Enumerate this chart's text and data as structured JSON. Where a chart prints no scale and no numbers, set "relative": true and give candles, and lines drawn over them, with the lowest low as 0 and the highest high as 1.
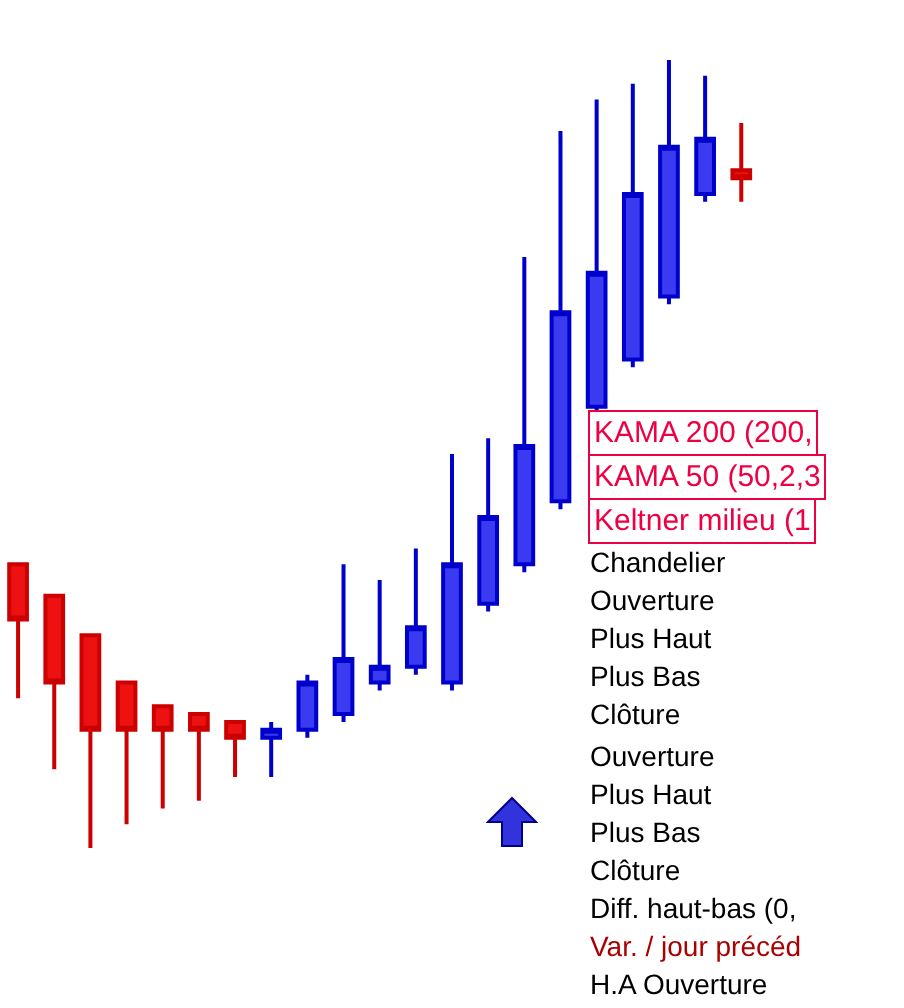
{
  "chart_data": {
    "type": "candlestick",
    "relative": true,
    "categories": [
      null,
      null,
      null,
      null,
      null,
      null,
      null,
      null,
      null,
      null,
      null,
      null,
      null,
      null,
      null,
      null,
      null,
      null,
      null,
      null,
      null
    ],
    "ohlc": [
      [
        0.36,
        0.36,
        0.19,
        0.29
      ],
      [
        0.32,
        0.32,
        0.1,
        0.21
      ],
      [
        0.27,
        0.27,
        0,
        0.15
      ],
      [
        0.21,
        0.21,
        0.03,
        0.15
      ],
      [
        0.18,
        0.18,
        0.05,
        0.15
      ],
      [
        0.17,
        0.17,
        0.06,
        0.15
      ],
      [
        0.16,
        0.16,
        0.09,
        0.14
      ],
      [
        0.14,
        0.16,
        0.09,
        0.15
      ],
      [
        0.15,
        0.22,
        0.14,
        0.21
      ],
      [
        0.17,
        0.36,
        0.16,
        0.24
      ],
      [
        0.21,
        0.34,
        0.2,
        0.23
      ],
      [
        0.23,
        0.38,
        0.22,
        0.28
      ],
      [
        0.21,
        0.5,
        0.2,
        0.36
      ],
      [
        0.31,
        0.52,
        0.3,
        0.42
      ],
      [
        0.36,
        0.75,
        0.35,
        0.51
      ],
      [
        0.44,
        0.91,
        0.43,
        0.68
      ],
      [
        0.56,
        0.95,
        0.55,
        0.73
      ],
      [
        0.62,
        0.97,
        0.61,
        0.83
      ],
      [
        0.7,
        1,
        0.69,
        0.89
      ],
      [
        0.83,
        0.98,
        0.82,
        0.9
      ],
      [
        0.86,
        0.92,
        0.82,
        0.85
      ]
    ],
    "annotations": [
      "KAMA 200 (200,",
      "KAMA 50 (50,2,3",
      "Keltner milieu (1",
      "Chandelier",
      "Ouverture",
      "Plus Haut",
      "Plus Bas",
      "Clôture",
      "Ouverture",
      "Plus Haut",
      "Plus Bas",
      "Clôture",
      "Diff. haut-bas (0,",
      "Var. / jour précéd",
      "H.A Ouverture"
    ]
  }
}
